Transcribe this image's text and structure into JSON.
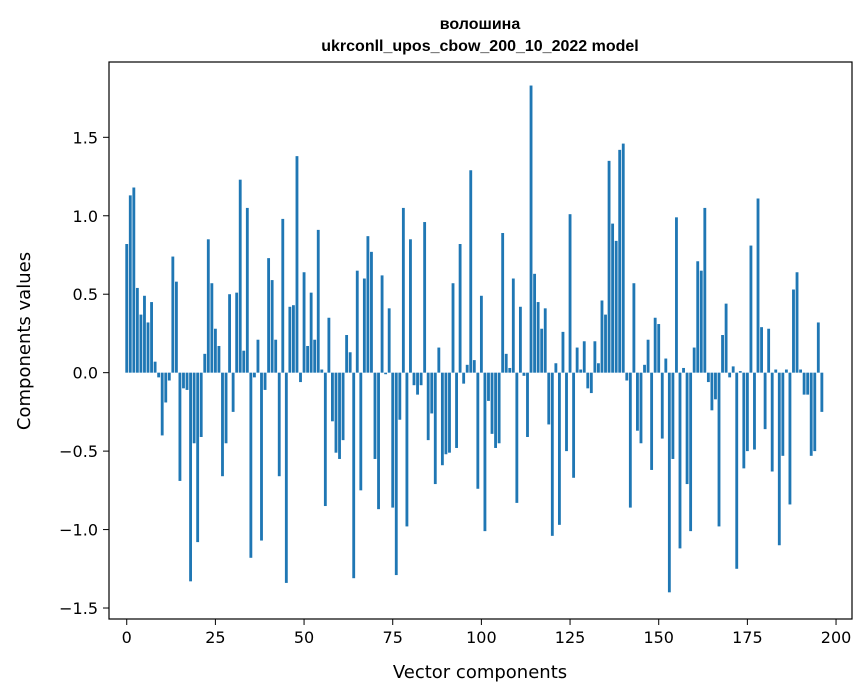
{
  "chart_data": {
    "type": "bar",
    "title": "волошина",
    "subtitle": "ukrconll_upos_cbow_200_10_2022 model",
    "xlabel": "Vector components",
    "ylabel": "Components values",
    "xlim": [
      -5,
      204.5
    ],
    "ylim": [
      -1.57,
      1.98
    ],
    "x_ticks": [
      0,
      25,
      50,
      75,
      100,
      125,
      150,
      175,
      200
    ],
    "y_ticks": [
      -1.5,
      -1.0,
      -0.5,
      0.0,
      0.5,
      1.0,
      1.5
    ],
    "y_tick_labels": [
      "−1.5",
      "−1.0",
      "−0.5",
      "0.0",
      "0.5",
      "1.0",
      "1.5"
    ],
    "grid": false,
    "bar_color": "#1f77b4",
    "values": [
      0.82,
      1.13,
      1.18,
      0.54,
      0.37,
      0.49,
      0.32,
      0.45,
      0.07,
      -0.03,
      -0.4,
      -0.19,
      -0.05,
      0.74,
      0.58,
      -0.69,
      -0.1,
      -0.11,
      -1.33,
      -0.45,
      -1.08,
      -0.41,
      0.12,
      0.85,
      0.57,
      0.28,
      0.17,
      -0.66,
      -0.45,
      0.5,
      -0.25,
      0.51,
      1.23,
      0.14,
      1.05,
      -1.18,
      -0.03,
      0.21,
      -1.07,
      -0.11,
      0.73,
      0.59,
      0.21,
      -0.66,
      0.98,
      -1.34,
      0.42,
      0.43,
      1.38,
      -0.06,
      0.64,
      0.17,
      0.51,
      0.21,
      0.91,
      0.02,
      -0.85,
      0.35,
      -0.31,
      -0.51,
      -0.55,
      -0.43,
      0.24,
      0.13,
      -1.31,
      0.65,
      -0.75,
      0.6,
      0.87,
      0.77,
      -0.55,
      -0.87,
      0.62,
      -0.01,
      0.41,
      -0.86,
      -1.29,
      -0.3,
      1.05,
      -0.98,
      0.85,
      -0.08,
      -0.14,
      -0.08,
      0.96,
      -0.43,
      -0.26,
      -0.71,
      0.16,
      -0.59,
      -0.52,
      -0.51,
      0.57,
      -0.48,
      0.82,
      -0.07,
      0.05,
      1.29,
      0.08,
      -0.74,
      0.49,
      -1.01,
      -0.18,
      -0.39,
      -0.48,
      -0.45,
      0.89,
      0.12,
      0.03,
      0.6,
      -0.83,
      0.42,
      -0.02,
      -0.41,
      1.83,
      0.63,
      0.45,
      0.28,
      0.41,
      -0.33,
      -1.04,
      0.06,
      -0.97,
      0.26,
      -0.5,
      1.01,
      -0.67,
      0.16,
      0.02,
      0.2,
      -0.1,
      -0.13,
      0.2,
      0.06,
      0.46,
      0.37,
      1.35,
      0.95,
      0.84,
      1.42,
      1.46,
      -0.05,
      -0.86,
      0.57,
      -0.37,
      -0.45,
      0.05,
      0.21,
      -0.62,
      0.35,
      0.31,
      -0.42,
      0.09,
      -1.4,
      -0.55,
      0.99,
      -1.12,
      0.03,
      -0.71,
      -1.01,
      0.16,
      0.71,
      0.65,
      1.05,
      -0.06,
      -0.24,
      -0.17,
      -0.98,
      0.24,
      0.44,
      -0.03,
      0.04,
      -1.25,
      0.01,
      -0.61,
      -0.5,
      0.81,
      -0.49,
      1.11,
      0.29,
      -0.36,
      0.28,
      -0.63,
      0.02,
      -1.1,
      -0.53,
      0.02,
      -0.84,
      0.53,
      0.64,
      0.02,
      -0.14,
      -0.14,
      -0.53,
      -0.5,
      0.32,
      -0.25
    ]
  }
}
